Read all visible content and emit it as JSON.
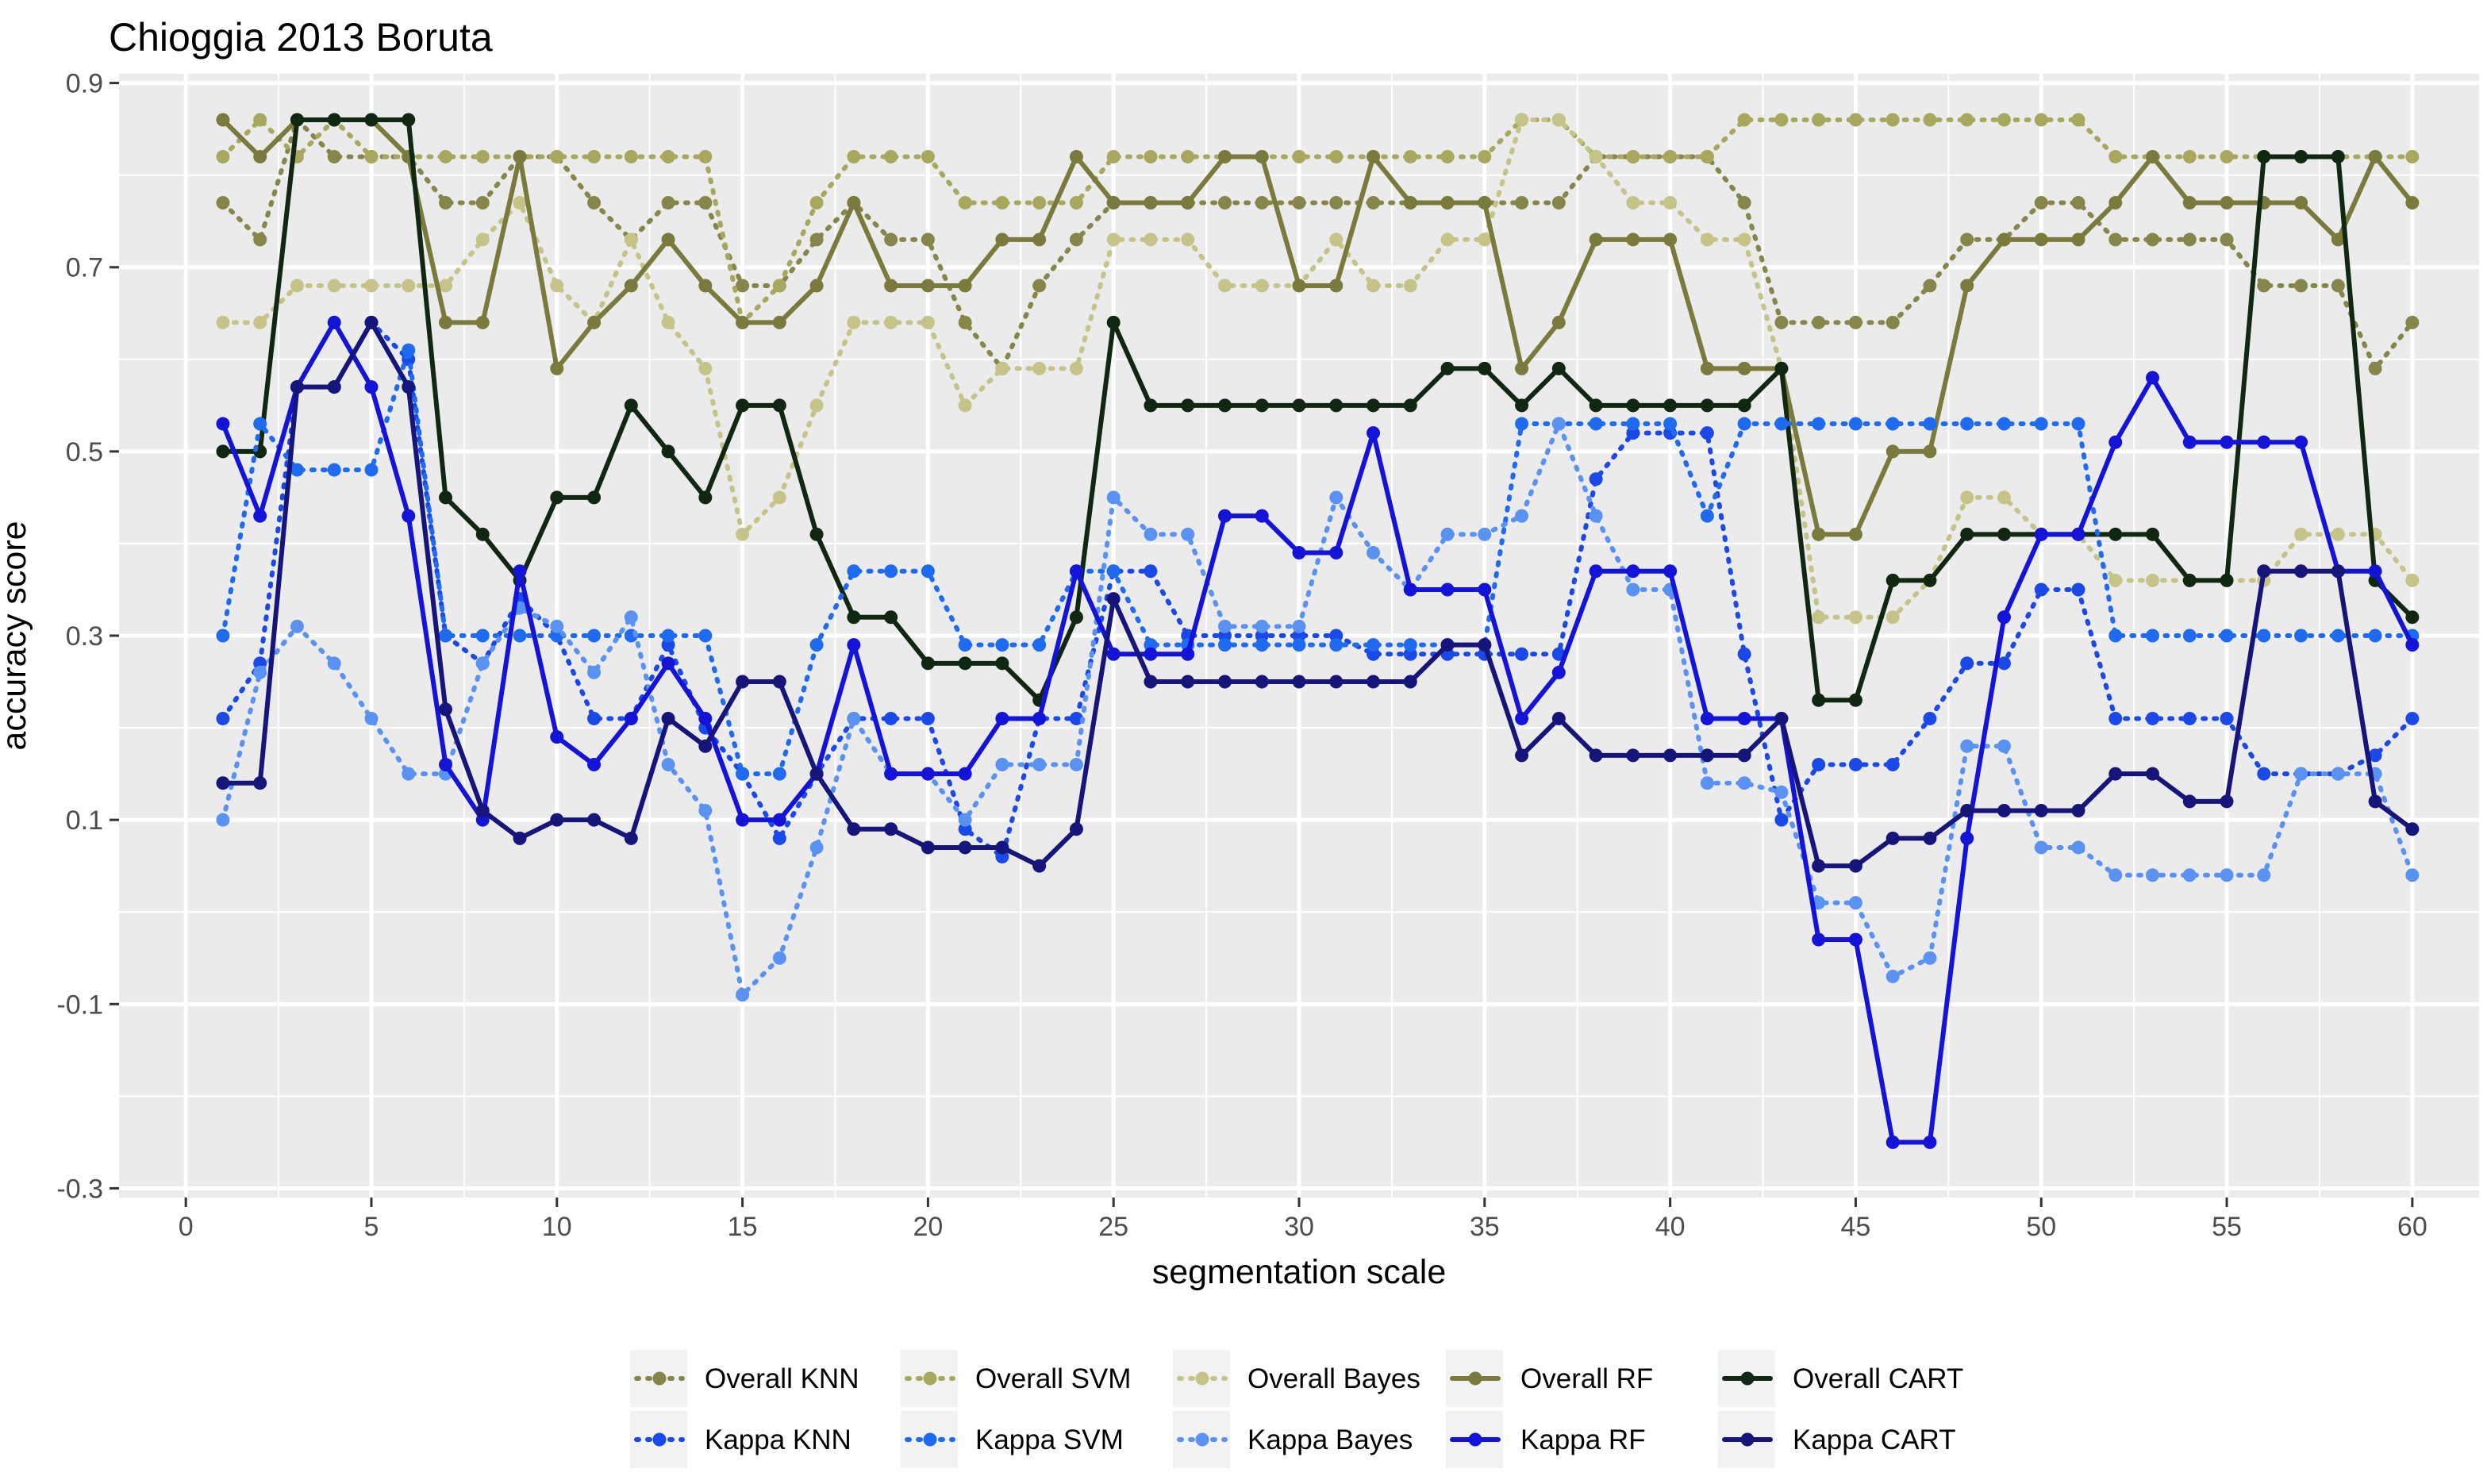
{
  "chart_data": {
    "type": "line",
    "title": "Chioggia 2013 Boruta",
    "xlabel": "segmentation scale",
    "ylabel": "accuracy score",
    "xlim": [
      -1.8,
      61.8
    ],
    "ylim": [
      -0.31,
      0.91
    ],
    "xticks": [
      0,
      5,
      10,
      15,
      20,
      25,
      30,
      35,
      40,
      45,
      50,
      55,
      60
    ],
    "yticks": [
      -0.3,
      -0.1,
      0.1,
      0.3,
      0.5,
      0.7,
      0.9
    ],
    "xtick_labels": [
      "0",
      "5",
      "10",
      "15",
      "20",
      "25",
      "30",
      "35",
      "40",
      "45",
      "50",
      "55",
      "60"
    ],
    "ytick_labels": [
      "-0.3",
      "-0.1",
      "0.1",
      "0.3",
      "0.5",
      "0.7",
      "0.9"
    ],
    "legend_position": "bottom",
    "x": [
      1,
      2,
      3,
      4,
      5,
      6,
      7,
      8,
      9,
      10,
      11,
      12,
      13,
      14,
      15,
      16,
      17,
      18,
      19,
      20,
      21,
      22,
      23,
      24,
      25,
      26,
      27,
      28,
      29,
      30,
      31,
      32,
      33,
      34,
      35,
      36,
      37,
      38,
      39,
      40,
      41,
      42,
      43,
      44,
      45,
      46,
      47,
      48,
      49,
      50,
      51,
      52,
      53,
      54,
      55,
      56,
      57,
      58,
      59,
      60
    ],
    "series": [
      {
        "name": "Overall KNN",
        "color": "#87864A",
        "dash": "dotted",
        "values": [
          0.77,
          0.73,
          0.86,
          0.82,
          0.82,
          0.82,
          0.77,
          0.77,
          0.82,
          0.82,
          0.77,
          0.73,
          0.77,
          0.77,
          0.68,
          0.68,
          0.73,
          0.77,
          0.73,
          0.73,
          0.64,
          0.59,
          0.68,
          0.73,
          0.77,
          0.77,
          0.77,
          0.77,
          0.77,
          0.77,
          0.77,
          0.77,
          0.77,
          0.77,
          0.77,
          0.77,
          0.77,
          0.82,
          0.82,
          0.82,
          0.82,
          0.77,
          0.64,
          0.64,
          0.64,
          0.64,
          0.68,
          0.73,
          0.73,
          0.77,
          0.77,
          0.73,
          0.73,
          0.73,
          0.73,
          0.68,
          0.68,
          0.68,
          0.59,
          0.64
        ]
      },
      {
        "name": "Overall SVM",
        "color": "#A7A85E",
        "dash": "dotted",
        "values": [
          0.82,
          0.86,
          0.82,
          0.86,
          0.82,
          0.82,
          0.82,
          0.82,
          0.82,
          0.82,
          0.82,
          0.82,
          0.82,
          0.82,
          0.64,
          0.68,
          0.77,
          0.82,
          0.82,
          0.82,
          0.77,
          0.77,
          0.77,
          0.77,
          0.82,
          0.82,
          0.82,
          0.82,
          0.82,
          0.82,
          0.82,
          0.82,
          0.82,
          0.82,
          0.82,
          0.86,
          0.86,
          0.82,
          0.82,
          0.82,
          0.82,
          0.86,
          0.86,
          0.86,
          0.86,
          0.86,
          0.86,
          0.86,
          0.86,
          0.86,
          0.86,
          0.82,
          0.82,
          0.82,
          0.82,
          0.82,
          0.82,
          0.82,
          0.82,
          0.82
        ]
      },
      {
        "name": "Overall Bayes",
        "color": "#C6C388",
        "dash": "dotted",
        "values": [
          0.64,
          0.64,
          0.68,
          0.68,
          0.68,
          0.68,
          0.68,
          0.73,
          0.77,
          0.68,
          0.64,
          0.73,
          0.64,
          0.59,
          0.41,
          0.45,
          0.55,
          0.64,
          0.64,
          0.64,
          0.55,
          0.59,
          0.59,
          0.59,
          0.73,
          0.73,
          0.73,
          0.68,
          0.68,
          0.68,
          0.73,
          0.68,
          0.68,
          0.73,
          0.73,
          0.86,
          0.86,
          0.82,
          0.77,
          0.77,
          0.73,
          0.73,
          0.59,
          0.32,
          0.32,
          0.32,
          0.36,
          0.45,
          0.45,
          0.41,
          0.41,
          0.36,
          0.36,
          0.36,
          0.36,
          0.36,
          0.41,
          0.41,
          0.41,
          0.36
        ]
      },
      {
        "name": "Overall RF",
        "color": "#7A7A3C",
        "dash": "solid",
        "values": [
          0.86,
          0.82,
          0.86,
          0.86,
          0.86,
          0.82,
          0.64,
          0.64,
          0.82,
          0.59,
          0.64,
          0.68,
          0.73,
          0.68,
          0.64,
          0.64,
          0.68,
          0.77,
          0.68,
          0.68,
          0.68,
          0.73,
          0.73,
          0.82,
          0.77,
          0.77,
          0.77,
          0.82,
          0.82,
          0.68,
          0.68,
          0.82,
          0.77,
          0.77,
          0.77,
          0.59,
          0.64,
          0.73,
          0.73,
          0.73,
          0.59,
          0.59,
          0.59,
          0.41,
          0.41,
          0.5,
          0.5,
          0.68,
          0.73,
          0.73,
          0.73,
          0.77,
          0.82,
          0.77,
          0.77,
          0.77,
          0.77,
          0.73,
          0.82,
          0.77
        ]
      },
      {
        "name": "Overall CART",
        "color": "#102812",
        "dash": "solid",
        "values": [
          0.5,
          0.5,
          0.86,
          0.86,
          0.86,
          0.86,
          0.45,
          0.41,
          0.36,
          0.45,
          0.45,
          0.55,
          0.5,
          0.45,
          0.55,
          0.55,
          0.41,
          0.32,
          0.32,
          0.27,
          0.27,
          0.27,
          0.23,
          0.32,
          0.64,
          0.55,
          0.55,
          0.55,
          0.55,
          0.55,
          0.55,
          0.55,
          0.55,
          0.59,
          0.59,
          0.55,
          0.59,
          0.55,
          0.55,
          0.55,
          0.55,
          0.55,
          0.59,
          0.23,
          0.23,
          0.36,
          0.36,
          0.41,
          0.41,
          0.41,
          0.41,
          0.41,
          0.41,
          0.36,
          0.36,
          0.82,
          0.82,
          0.82,
          0.36,
          0.32
        ]
      },
      {
        "name": "Kappa KNN",
        "color": "#1A49E8",
        "dash": "dotted",
        "values": [
          0.21,
          0.27,
          0.57,
          0.57,
          0.64,
          0.6,
          0.3,
          0.27,
          0.34,
          0.3,
          0.21,
          0.21,
          0.29,
          0.2,
          0.15,
          0.08,
          0.15,
          0.21,
          0.21,
          0.21,
          0.09,
          0.06,
          0.21,
          0.21,
          0.37,
          0.37,
          0.3,
          0.3,
          0.3,
          0.3,
          0.3,
          0.28,
          0.28,
          0.28,
          0.28,
          0.28,
          0.28,
          0.47,
          0.52,
          0.52,
          0.52,
          0.28,
          0.1,
          0.16,
          0.16,
          0.16,
          0.21,
          0.27,
          0.27,
          0.35,
          0.35,
          0.21,
          0.21,
          0.21,
          0.21,
          0.15,
          0.15,
          0.15,
          0.17,
          0.21
        ]
      },
      {
        "name": "Kappa SVM",
        "color": "#1E6BF0",
        "dash": "dotted",
        "values": [
          0.3,
          0.53,
          0.48,
          0.48,
          0.48,
          0.61,
          0.3,
          0.3,
          0.3,
          0.3,
          0.3,
          0.3,
          0.3,
          0.3,
          0.15,
          0.15,
          0.29,
          0.37,
          0.37,
          0.37,
          0.29,
          0.29,
          0.29,
          0.37,
          0.37,
          0.29,
          0.29,
          0.29,
          0.29,
          0.29,
          0.29,
          0.29,
          0.29,
          0.29,
          0.29,
          0.53,
          0.53,
          0.53,
          0.53,
          0.53,
          0.43,
          0.53,
          0.53,
          0.53,
          0.53,
          0.53,
          0.53,
          0.53,
          0.53,
          0.53,
          0.53,
          0.3,
          0.3,
          0.3,
          0.3,
          0.3,
          0.3,
          0.3,
          0.3,
          0.3
        ]
      },
      {
        "name": "Kappa Bayes",
        "color": "#5A92F2",
        "dash": "dotted",
        "values": [
          0.1,
          0.26,
          0.31,
          0.27,
          0.21,
          0.15,
          0.15,
          0.27,
          0.33,
          0.31,
          0.26,
          0.32,
          0.16,
          0.11,
          -0.09,
          -0.05,
          0.07,
          0.21,
          0.15,
          0.15,
          0.1,
          0.16,
          0.16,
          0.16,
          0.45,
          0.41,
          0.41,
          0.31,
          0.31,
          0.31,
          0.45,
          0.39,
          0.35,
          0.41,
          0.41,
          0.43,
          0.53,
          0.43,
          0.35,
          0.35,
          0.14,
          0.14,
          0.13,
          0.01,
          0.01,
          -0.07,
          -0.05,
          0.18,
          0.18,
          0.07,
          0.07,
          0.04,
          0.04,
          0.04,
          0.04,
          0.04,
          0.15,
          0.15,
          0.15,
          0.04
        ]
      },
      {
        "name": "Kappa RF",
        "color": "#1414D8",
        "dash": "solid",
        "values": [
          0.53,
          0.43,
          0.57,
          0.64,
          0.57,
          0.43,
          0.16,
          0.1,
          0.37,
          0.19,
          0.16,
          0.21,
          0.27,
          0.21,
          0.1,
          0.1,
          0.15,
          0.29,
          0.15,
          0.15,
          0.15,
          0.21,
          0.21,
          0.37,
          0.28,
          0.28,
          0.28,
          0.43,
          0.43,
          0.39,
          0.39,
          0.52,
          0.35,
          0.35,
          0.35,
          0.21,
          0.26,
          0.37,
          0.37,
          0.37,
          0.21,
          0.21,
          0.21,
          -0.03,
          -0.03,
          -0.25,
          -0.25,
          0.08,
          0.32,
          0.41,
          0.41,
          0.51,
          0.58,
          0.51,
          0.51,
          0.51,
          0.51,
          0.37,
          0.37,
          0.29
        ]
      },
      {
        "name": "Kappa CART",
        "color": "#15157A",
        "dash": "solid",
        "values": [
          0.14,
          0.14,
          0.57,
          0.57,
          0.64,
          0.57,
          0.22,
          0.11,
          0.08,
          0.1,
          0.1,
          0.08,
          0.21,
          0.18,
          0.25,
          0.25,
          0.15,
          0.09,
          0.09,
          0.07,
          0.07,
          0.07,
          0.05,
          0.09,
          0.34,
          0.25,
          0.25,
          0.25,
          0.25,
          0.25,
          0.25,
          0.25,
          0.25,
          0.29,
          0.29,
          0.17,
          0.21,
          0.17,
          0.17,
          0.17,
          0.17,
          0.17,
          0.21,
          0.05,
          0.05,
          0.08,
          0.08,
          0.11,
          0.11,
          0.11,
          0.11,
          0.15,
          0.15,
          0.12,
          0.12,
          0.37,
          0.37,
          0.37,
          0.12,
          0.09
        ]
      }
    ]
  }
}
